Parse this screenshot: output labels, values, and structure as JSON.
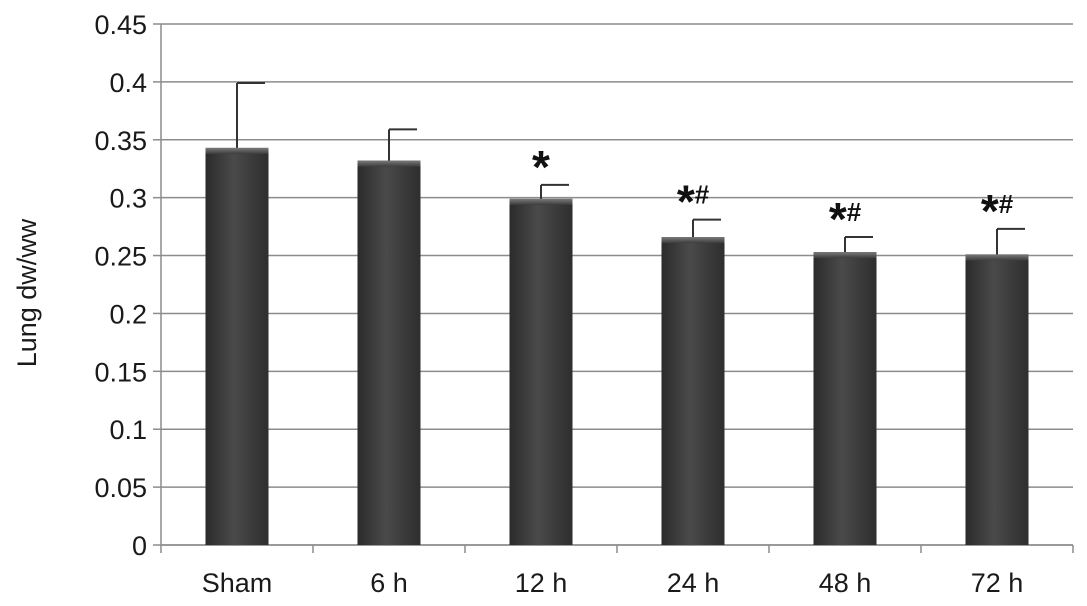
{
  "chart_data": {
    "type": "bar",
    "title": "",
    "xlabel": "",
    "ylabel": "Lung dw/ww",
    "categories": [
      "Sham",
      "6 h",
      "12 h",
      "24 h",
      "48 h",
      "72 h"
    ],
    "values": [
      0.343,
      0.332,
      0.299,
      0.266,
      0.253,
      0.251
    ],
    "error_upper": [
      0.399,
      0.359,
      0.311,
      0.281,
      0.266,
      0.273
    ],
    "annotations": [
      {
        "category": "12 h",
        "symbols": [
          "*"
        ]
      },
      {
        "category": "24 h",
        "symbols": [
          "*",
          "#"
        ]
      },
      {
        "category": "48 h",
        "symbols": [
          "*",
          "#"
        ]
      },
      {
        "category": "72 h",
        "symbols": [
          "*",
          "#"
        ]
      }
    ],
    "ylim": [
      0,
      0.45
    ],
    "yticks": [
      0,
      0.05,
      0.1,
      0.15,
      0.2,
      0.25,
      0.3,
      0.35,
      0.4,
      0.45
    ],
    "ytick_labels": [
      "0",
      "0.05",
      "0.1",
      "0.15",
      "0.2",
      "0.25",
      "0.3",
      "0.35",
      "0.4",
      "0.45"
    ],
    "grid": true,
    "legend": "none",
    "colors": {
      "bar": "#3d3d3d",
      "bar_highlight": "#5e5e5e",
      "grid": "#8c8c8c",
      "axis": "#8c8c8c",
      "error_bar": "#333333"
    }
  }
}
